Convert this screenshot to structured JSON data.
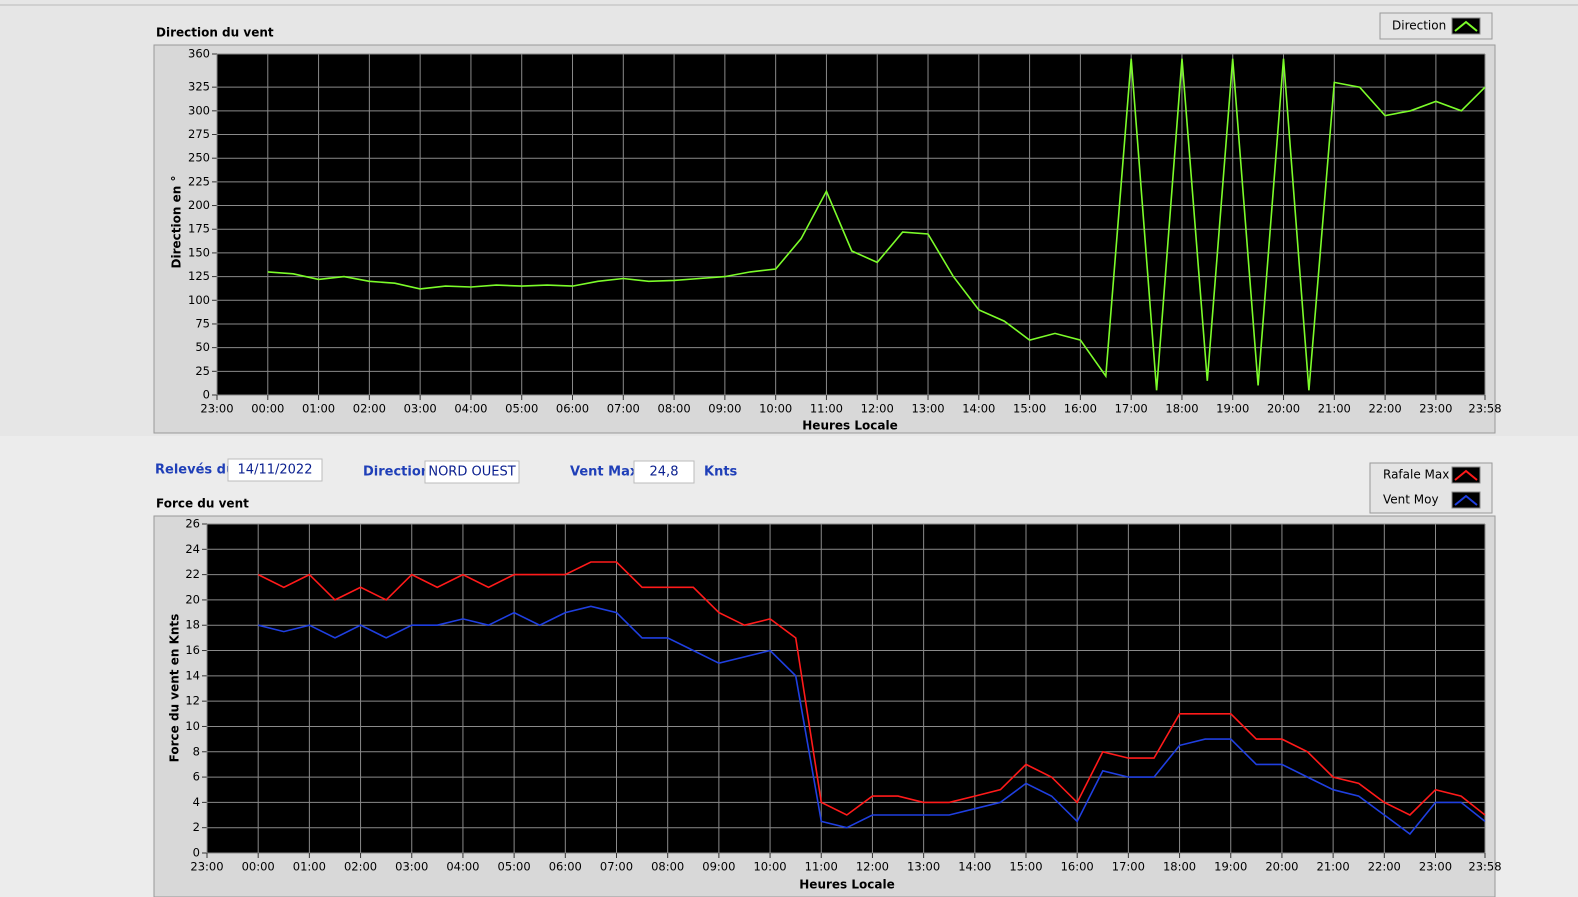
{
  "chart_data": [
    {
      "type": "line",
      "title": "Direction du vent",
      "y_label": "Direction en °",
      "x_label": "Heures Locale",
      "x": [
        0,
        0.5,
        1,
        1.5,
        2,
        2.5,
        3,
        3.5,
        4,
        4.5,
        5,
        5.5,
        6,
        6.5,
        7,
        7.5,
        8,
        8.5,
        9,
        9.5,
        10,
        10.5,
        11,
        11.5,
        12,
        12.5,
        13,
        13.5,
        14,
        14.5,
        15,
        15.5,
        16,
        16.5,
        17,
        17.5,
        18,
        18.5,
        19,
        19.5,
        20,
        20.5,
        21,
        21.5,
        22,
        22.5,
        23,
        23.5,
        23.967
      ],
      "series": [
        {
          "name": "Direction",
          "color": "#7cfc2a",
          "values": [
            130,
            128,
            122,
            125,
            120,
            118,
            112,
            115,
            114,
            116,
            115,
            116,
            115,
            120,
            123,
            120,
            121,
            123,
            125,
            130,
            133,
            165,
            215,
            152,
            140,
            172,
            170,
            125,
            90,
            78,
            58,
            65,
            58,
            20,
            355,
            5,
            355,
            15,
            355,
            10,
            355,
            5,
            330,
            325,
            295,
            300,
            310,
            300,
            325
          ]
        }
      ],
      "xlim": [
        -1,
        23.967
      ],
      "xticks": [
        {
          "value": -1,
          "label": "23:00"
        },
        {
          "value": 0,
          "label": "00:00"
        },
        {
          "value": 1,
          "label": "01:00"
        },
        {
          "value": 2,
          "label": "02:00"
        },
        {
          "value": 3,
          "label": "03:00"
        },
        {
          "value": 4,
          "label": "04:00"
        },
        {
          "value": 5,
          "label": "05:00"
        },
        {
          "value": 6,
          "label": "06:00"
        },
        {
          "value": 7,
          "label": "07:00"
        },
        {
          "value": 8,
          "label": "08:00"
        },
        {
          "value": 9,
          "label": "09:00"
        },
        {
          "value": 10,
          "label": "10:00"
        },
        {
          "value": 11,
          "label": "11:00"
        },
        {
          "value": 12,
          "label": "12:00"
        },
        {
          "value": 13,
          "label": "13:00"
        },
        {
          "value": 14,
          "label": "14:00"
        },
        {
          "value": 15,
          "label": "15:00"
        },
        {
          "value": 16,
          "label": "16:00"
        },
        {
          "value": 17,
          "label": "17:00"
        },
        {
          "value": 18,
          "label": "18:00"
        },
        {
          "value": 19,
          "label": "19:00"
        },
        {
          "value": 20,
          "label": "20:00"
        },
        {
          "value": 21,
          "label": "21:00"
        },
        {
          "value": 22,
          "label": "22:00"
        },
        {
          "value": 23,
          "label": "23:00"
        },
        {
          "value": 23.967,
          "label": "23:58"
        }
      ],
      "ylim": [
        0,
        360
      ],
      "yticks": [
        0,
        25,
        50,
        75,
        100,
        125,
        150,
        175,
        200,
        225,
        250,
        275,
        300,
        325,
        360
      ],
      "grid": true
    },
    {
      "type": "line",
      "title": "Force du vent",
      "y_label": "Force du vent en Knts",
      "x_label": "Heures Locale",
      "x": [
        0,
        0.5,
        1,
        1.5,
        2,
        2.5,
        3,
        3.5,
        4,
        4.5,
        5,
        5.5,
        6,
        6.5,
        7,
        7.5,
        8,
        8.5,
        9,
        9.5,
        10,
        10.5,
        11,
        11.5,
        12,
        12.5,
        13,
        13.5,
        14,
        14.5,
        15,
        15.5,
        16,
        16.5,
        17,
        17.5,
        18,
        18.5,
        19,
        19.5,
        20,
        20.5,
        21,
        21.5,
        22,
        22.5,
        23,
        23.5,
        23.967
      ],
      "series": [
        {
          "name": "Rafale Max",
          "color": "#ff1a1a",
          "values": [
            22,
            21,
            22,
            20,
            21,
            20,
            22,
            21,
            22,
            21,
            22,
            22,
            22,
            23,
            23,
            21,
            21,
            21,
            19,
            18,
            18.5,
            17,
            4,
            3,
            4.5,
            4.5,
            4,
            4,
            4.5,
            5,
            7,
            6,
            4,
            8,
            7.5,
            7.5,
            11,
            11,
            11,
            9,
            9,
            8,
            6,
            5.5,
            4,
            3,
            5,
            4.5,
            3
          ]
        },
        {
          "name": "Vent Moy",
          "color": "#1f3fe0",
          "values": [
            18,
            17.5,
            18,
            17,
            18,
            17,
            18,
            18,
            18.5,
            18,
            19,
            18,
            19,
            19.5,
            19,
            17,
            17,
            16,
            15,
            15.5,
            16,
            14,
            2.5,
            2,
            3,
            3,
            3,
            3,
            3.5,
            4,
            5.5,
            4.5,
            2.5,
            6.5,
            6,
            6,
            8.5,
            9,
            9,
            7,
            7,
            6,
            5,
            4.5,
            3,
            1.5,
            4,
            4,
            2.5
          ]
        }
      ],
      "xlim": [
        -1,
        23.967
      ],
      "xticks": [
        {
          "value": -1,
          "label": "23:00"
        },
        {
          "value": 0,
          "label": "00:00"
        },
        {
          "value": 1,
          "label": "01:00"
        },
        {
          "value": 2,
          "label": "02:00"
        },
        {
          "value": 3,
          "label": "03:00"
        },
        {
          "value": 4,
          "label": "04:00"
        },
        {
          "value": 5,
          "label": "05:00"
        },
        {
          "value": 6,
          "label": "06:00"
        },
        {
          "value": 7,
          "label": "07:00"
        },
        {
          "value": 8,
          "label": "08:00"
        },
        {
          "value": 9,
          "label": "09:00"
        },
        {
          "value": 10,
          "label": "10:00"
        },
        {
          "value": 11,
          "label": "11:00"
        },
        {
          "value": 12,
          "label": "12:00"
        },
        {
          "value": 13,
          "label": "13:00"
        },
        {
          "value": 14,
          "label": "14:00"
        },
        {
          "value": 15,
          "label": "15:00"
        },
        {
          "value": 16,
          "label": "16:00"
        },
        {
          "value": 17,
          "label": "17:00"
        },
        {
          "value": 18,
          "label": "18:00"
        },
        {
          "value": 19,
          "label": "19:00"
        },
        {
          "value": 20,
          "label": "20:00"
        },
        {
          "value": 21,
          "label": "21:00"
        },
        {
          "value": 22,
          "label": "22:00"
        },
        {
          "value": 23,
          "label": "23:00"
        },
        {
          "value": 23.967,
          "label": "23:58"
        }
      ],
      "ylim": [
        0,
        26
      ],
      "yticks": [
        0,
        2,
        4,
        6,
        8,
        10,
        12,
        14,
        16,
        18,
        20,
        22,
        24,
        26
      ],
      "grid": true
    }
  ],
  "form": {
    "date_label": "Relevés du",
    "date": "14/11/2022",
    "direction_label": "Direction",
    "direction": "NORD OUEST",
    "max_label": "Vent Max",
    "max": "24,8",
    "unit": "Knts"
  }
}
